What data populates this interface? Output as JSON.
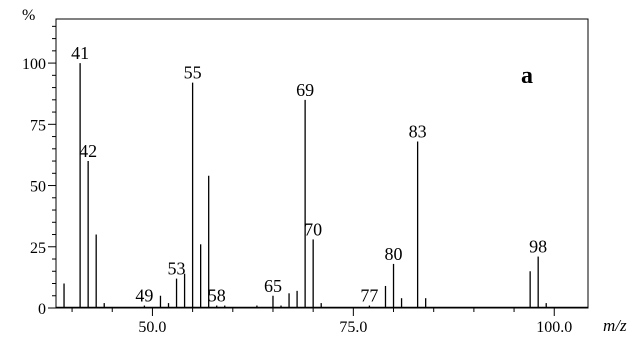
{
  "chart_data": {
    "type": "bar",
    "panel_label": "a",
    "ylabel": "%",
    "xlabel": "m/z",
    "xlim": [
      38.0,
      104.2
    ],
    "ylim": [
      0,
      118
    ],
    "x_ticks": [
      "50.0",
      "75.0",
      "100.0"
    ],
    "y_ticks": [
      "0",
      "25",
      "50",
      "75",
      "100"
    ],
    "grid": false,
    "peaks": [
      {
        "x": 39,
        "y": 10
      },
      {
        "x": 41,
        "y": 100,
        "label": "41"
      },
      {
        "x": 42,
        "y": 60,
        "label": "42"
      },
      {
        "x": 43,
        "y": 30
      },
      {
        "x": 44,
        "y": 2
      },
      {
        "x": 49,
        "y": 1,
        "label": "49"
      },
      {
        "x": 51,
        "y": 5
      },
      {
        "x": 52,
        "y": 2
      },
      {
        "x": 53,
        "y": 12,
        "label": "53"
      },
      {
        "x": 54,
        "y": 14
      },
      {
        "x": 55,
        "y": 92,
        "label": "55"
      },
      {
        "x": 56,
        "y": 26
      },
      {
        "x": 57,
        "y": 54
      },
      {
        "x": 58,
        "y": 1,
        "label": "58"
      },
      {
        "x": 59,
        "y": 1
      },
      {
        "x": 63,
        "y": 1
      },
      {
        "x": 65,
        "y": 5,
        "label": "65"
      },
      {
        "x": 66,
        "y": 1
      },
      {
        "x": 67,
        "y": 6
      },
      {
        "x": 68,
        "y": 7
      },
      {
        "x": 69,
        "y": 85,
        "label": "69"
      },
      {
        "x": 70,
        "y": 28,
        "label": "70"
      },
      {
        "x": 71,
        "y": 2
      },
      {
        "x": 77,
        "y": 1,
        "label": "77"
      },
      {
        "x": 79,
        "y": 9
      },
      {
        "x": 80,
        "y": 18,
        "label": "80"
      },
      {
        "x": 81,
        "y": 4
      },
      {
        "x": 83,
        "y": 68,
        "label": "83"
      },
      {
        "x": 84,
        "y": 4
      },
      {
        "x": 97,
        "y": 15
      },
      {
        "x": 98,
        "y": 21,
        "label": "98"
      },
      {
        "x": 99,
        "y": 2
      }
    ]
  }
}
